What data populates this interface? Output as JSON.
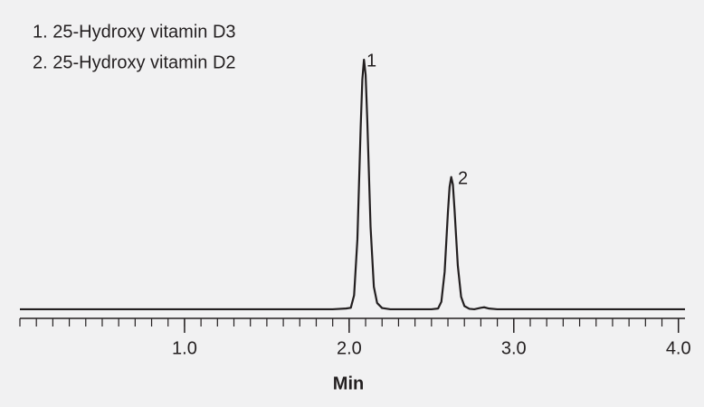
{
  "chart_data": {
    "type": "line",
    "annotations": [
      "1. 25-Hydroxy vitamin D3",
      "2. 25-Hydroxy vitamin D2"
    ],
    "peak_labels": [
      "1",
      "2"
    ],
    "xlabel": "Min",
    "x": [
      0,
      1.9,
      1.98,
      2.01,
      2.03,
      2.05,
      2.07,
      2.08,
      2.09,
      2.1,
      2.11,
      2.13,
      2.15,
      2.17,
      2.2,
      2.25,
      2.5,
      2.54,
      2.56,
      2.58,
      2.6,
      2.61,
      2.62,
      2.63,
      2.64,
      2.66,
      2.68,
      2.7,
      2.73,
      2.76,
      2.8,
      2.82,
      2.85,
      2.9,
      4.04
    ],
    "series": [
      {
        "color": "#231f20",
        "values": [
          0,
          0,
          0.3,
          0.6,
          5.6,
          28,
          73,
          92,
          100,
          94,
          76,
          33,
          9,
          2.5,
          0.5,
          0,
          0,
          0.3,
          3,
          15,
          39,
          49,
          53,
          50,
          40,
          17.5,
          5,
          1.3,
          0.2,
          0,
          0.6,
          0.8,
          0.3,
          0,
          0
        ]
      }
    ],
    "xlim": [
      0,
      4.04
    ],
    "xticks": [
      {
        "value": 1,
        "label": "1.0"
      },
      {
        "value": 2,
        "label": "2.0"
      },
      {
        "value": 3,
        "label": "3.0"
      },
      {
        "value": 4,
        "label": "4.0"
      }
    ],
    "minor_tick_step": 0.1,
    "ylim": [
      -4,
      100
    ]
  }
}
